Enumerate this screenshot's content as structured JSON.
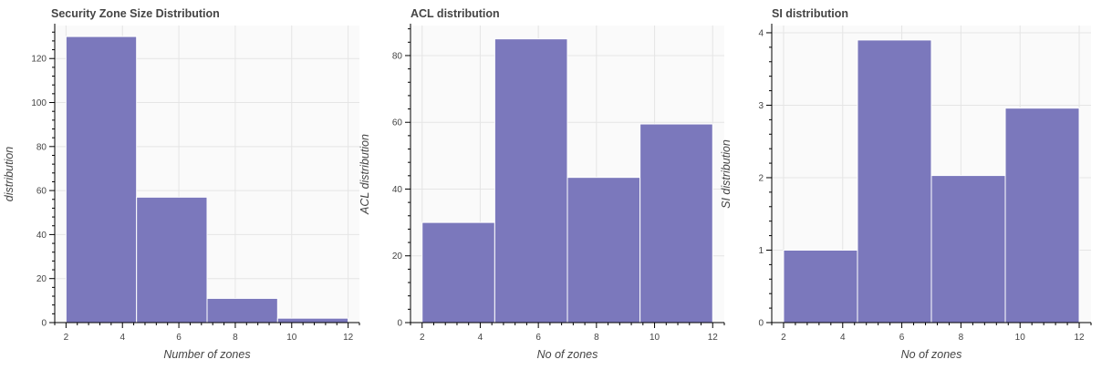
{
  "chart_data": [
    {
      "type": "bar",
      "title": "Security Zone Size Distribution",
      "xlabel": "Number of zones",
      "ylabel": "distribution",
      "bin_edges": [
        2,
        4.5,
        7,
        9.5,
        12
      ],
      "values": [
        130,
        57,
        11,
        2
      ],
      "xlim": [
        1.6,
        12.4
      ],
      "ylim": [
        0,
        135
      ],
      "xticks": [
        2,
        4,
        6,
        8,
        10,
        12
      ],
      "yticks": [
        0,
        20,
        40,
        60,
        80,
        100,
        120
      ],
      "grid": true,
      "color": "#7b78bc"
    },
    {
      "type": "bar",
      "title": "ACL distribution",
      "xlabel": "No of zones",
      "ylabel": "ACL distribution",
      "bin_edges": [
        2,
        4.5,
        7,
        9.5,
        12
      ],
      "values": [
        30,
        85,
        43.5,
        59.5
      ],
      "xlim": [
        1.6,
        12.4
      ],
      "ylim": [
        0,
        89
      ],
      "xticks": [
        2,
        4,
        6,
        8,
        10,
        12
      ],
      "yticks": [
        0,
        20,
        40,
        60,
        80
      ],
      "grid": true,
      "color": "#7b78bc"
    },
    {
      "type": "bar",
      "title": "SI distribution",
      "xlabel": "No of zones",
      "ylabel": "SI distribution",
      "bin_edges": [
        2,
        4.5,
        7,
        9.5,
        12
      ],
      "values": [
        1,
        3.9,
        2.03,
        2.96
      ],
      "xlim": [
        1.6,
        12.4
      ],
      "ylim": [
        0,
        4.1
      ],
      "xticks": [
        2,
        4,
        6,
        8,
        10,
        12
      ],
      "yticks": [
        0,
        1,
        2,
        3,
        4
      ],
      "grid": true,
      "color": "#7b78bc"
    }
  ]
}
